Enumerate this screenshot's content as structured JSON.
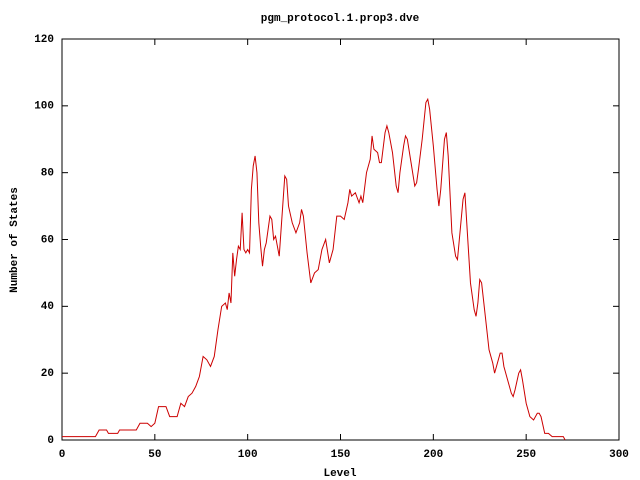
{
  "chart_data": {
    "type": "line",
    "title": "pgm_protocol.1.prop3.dve",
    "x_label": "Level",
    "y_label": "Number of States",
    "x": [
      0,
      18,
      20,
      24,
      25,
      30,
      31,
      40,
      42,
      46,
      48,
      50,
      52,
      56,
      58,
      62,
      64,
      66,
      68,
      70,
      72,
      74,
      76,
      78,
      80,
      82,
      84,
      86,
      88,
      89,
      90,
      91,
      92,
      93,
      94,
      95,
      96,
      97,
      98,
      99,
      100,
      101,
      102,
      103,
      104,
      105,
      106,
      107,
      108,
      109,
      110,
      112,
      113,
      114,
      115,
      116,
      117,
      118,
      120,
      121,
      122,
      124,
      126,
      128,
      129,
      130,
      132,
      134,
      136,
      138,
      140,
      142,
      144,
      146,
      148,
      150,
      152,
      154,
      155,
      156,
      158,
      160,
      161,
      162,
      164,
      166,
      167,
      168,
      170,
      171,
      172,
      174,
      175,
      176,
      178,
      180,
      181,
      182,
      184,
      185,
      186,
      188,
      190,
      191,
      192,
      194,
      196,
      197,
      198,
      200,
      202,
      203,
      204,
      206,
      207,
      208,
      210,
      212,
      213,
      214,
      216,
      217,
      218,
      220,
      222,
      223,
      224,
      225,
      226,
      228,
      230,
      232,
      233,
      234,
      236,
      237,
      238,
      240,
      242,
      243,
      244,
      246,
      247,
      248,
      250,
      252,
      254,
      256,
      257,
      258,
      260,
      262,
      264,
      270,
      271
    ],
    "series": [
      {
        "name": "states",
        "color": "#cc0000",
        "values": [
          1,
          1,
          3,
          3,
          2,
          2,
          3,
          3,
          5,
          5,
          4,
          5,
          10,
          10,
          7,
          7,
          11,
          10,
          13,
          14,
          16,
          19,
          25,
          24,
          22,
          25,
          33,
          40,
          41,
          39,
          44,
          41,
          56,
          49,
          54,
          58,
          57,
          68,
          57,
          56,
          57,
          56,
          75,
          82,
          85,
          80,
          65,
          58,
          52,
          57,
          59,
          67,
          66,
          60,
          61,
          58,
          55,
          63,
          79,
          78,
          70,
          65,
          62,
          65,
          69,
          67,
          56,
          47,
          50,
          51,
          57,
          60,
          53,
          57,
          67,
          67,
          66,
          71,
          75,
          73,
          74,
          71,
          73,
          71,
          80,
          84,
          91,
          87,
          86,
          83,
          83,
          92,
          94,
          92,
          86,
          76,
          74,
          80,
          88,
          91,
          90,
          83,
          76,
          77,
          81,
          90,
          101,
          102,
          99,
          88,
          75,
          70,
          75,
          90,
          92,
          85,
          62,
          55,
          54,
          60,
          72,
          74,
          65,
          47,
          39,
          37,
          41,
          48,
          47,
          37,
          27,
          23,
          20,
          22,
          26,
          26,
          22,
          18,
          14,
          13,
          15,
          20,
          21,
          18,
          11,
          7,
          6,
          8,
          8,
          7,
          2,
          2,
          1,
          1,
          0
        ]
      }
    ],
    "xlim": [
      0,
      300
    ],
    "xticks": [
      0,
      50,
      100,
      150,
      200,
      250,
      300
    ],
    "ylim": [
      0,
      120
    ],
    "yticks": [
      0,
      20,
      40,
      60,
      80,
      100,
      120
    ]
  }
}
